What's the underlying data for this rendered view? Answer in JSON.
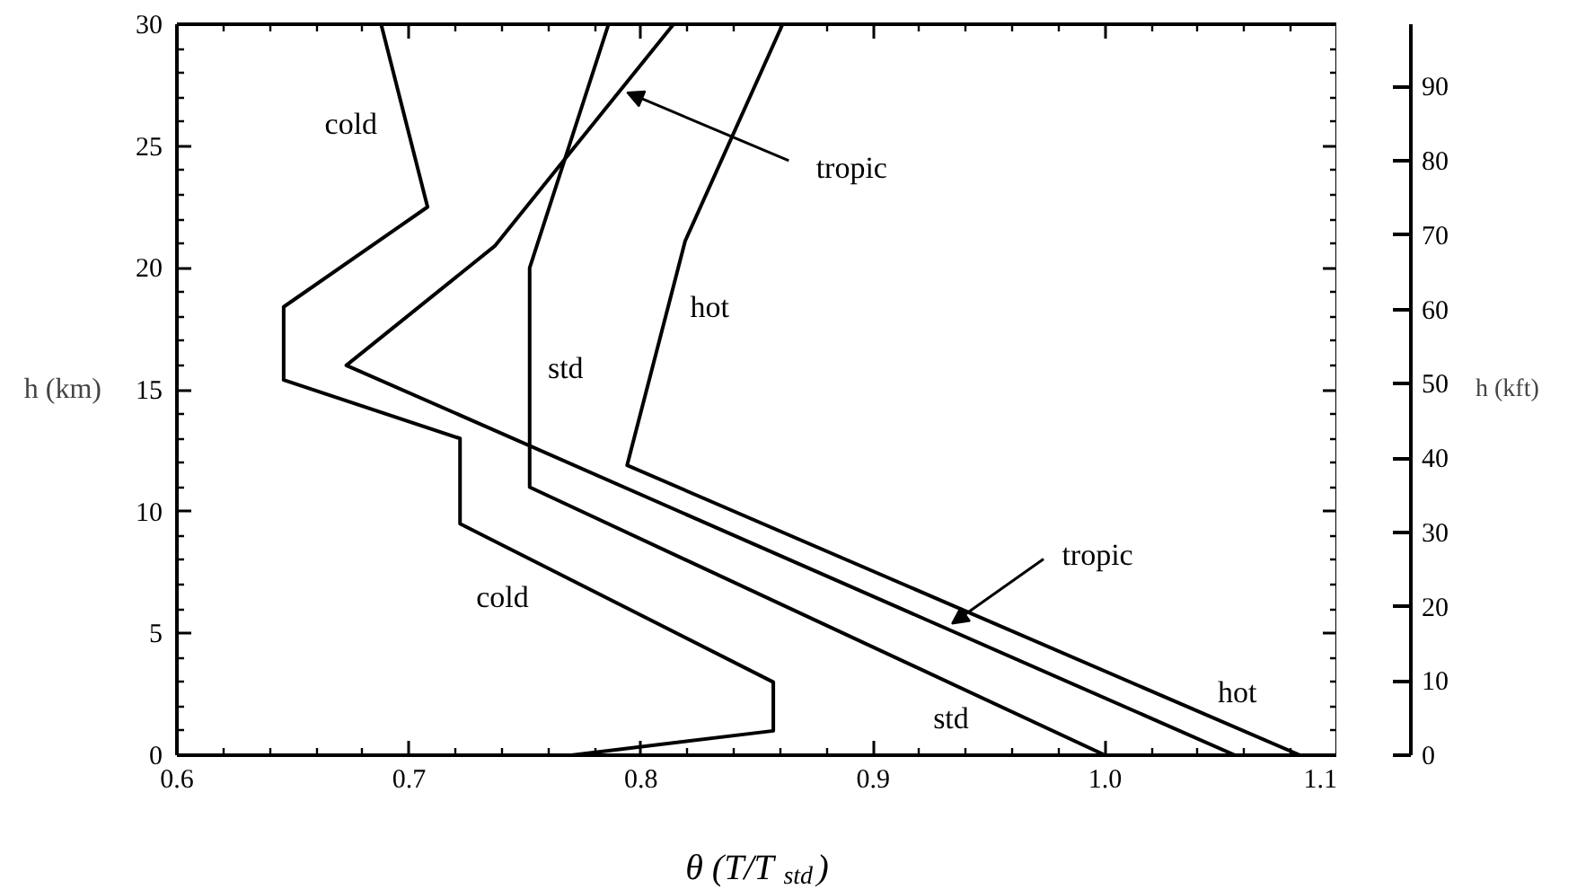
{
  "chart_data": {
    "type": "line",
    "xlabel": "θ (T/T$_{std}$)",
    "ylabel": "h (km)",
    "y2label": "h (kft)",
    "xlim": [
      0.6,
      1.1
    ],
    "ylim": [
      0,
      30
    ],
    "y2lim": [
      0,
      98.4
    ],
    "xticks": [
      0.6,
      {
        "value": 0.62,
        "label": null
      },
      {
        "value": 0.64,
        "label": null
      },
      {
        "value": 0.66,
        "label": null
      },
      {
        "value": 0.68,
        "label": null
      },
      0.7,
      {
        "value": 0.72,
        "label": null
      },
      {
        "value": 0.74,
        "label": null
      },
      {
        "value": 0.76,
        "label": null
      },
      {
        "value": 0.78,
        "label": null
      },
      0.8,
      {
        "value": 0.82,
        "label": null
      },
      {
        "value": 0.84,
        "label": null
      },
      {
        "value": 0.86,
        "label": null
      },
      {
        "value": 0.88,
        "label": null
      },
      0.9,
      {
        "value": 0.92,
        "label": null
      },
      {
        "value": 0.94,
        "label": null
      },
      {
        "value": 0.96,
        "label": null
      },
      {
        "value": 0.98,
        "label": null
      },
      {
        "value": 1.0,
        "label": "1.0"
      },
      {
        "value": 1.02,
        "label": null
      },
      {
        "value": 1.04,
        "label": null
      },
      {
        "value": 1.06,
        "label": null
      },
      {
        "value": 1.08,
        "label": null
      },
      1.1
    ],
    "yticks": [
      0,
      {
        "value": 1,
        "label": null
      },
      {
        "value": 2,
        "label": null
      },
      {
        "value": 3,
        "label": null
      },
      {
        "value": 4,
        "label": null
      },
      5,
      {
        "value": 6,
        "label": null
      },
      {
        "value": 7,
        "label": null
      },
      {
        "value": 8,
        "label": null
      },
      {
        "value": 9,
        "label": null
      },
      10,
      {
        "value": 11,
        "label": null
      },
      {
        "value": 12,
        "label": null
      },
      {
        "value": 13,
        "label": null
      },
      {
        "value": 14,
        "label": null
      },
      15,
      {
        "value": 16,
        "label": null
      },
      {
        "value": 17,
        "label": null
      },
      {
        "value": 18,
        "label": null
      },
      {
        "value": 19,
        "label": null
      },
      20,
      {
        "value": 21,
        "label": null
      },
      {
        "value": 22,
        "label": null
      },
      {
        "value": 23,
        "label": null
      },
      {
        "value": 24,
        "label": null
      },
      25,
      {
        "value": 26,
        "label": null
      },
      {
        "value": 27,
        "label": null
      },
      {
        "value": 28,
        "label": null
      },
      {
        "value": 29,
        "label": null
      },
      30
    ],
    "y2ticks": [
      0,
      10,
      20,
      30,
      40,
      50,
      60,
      70,
      80,
      90
    ],
    "series": [
      {
        "color": "#000000",
        "x": [
          0.77,
          0.857,
          0.857,
          0.722,
          0.722,
          0.646,
          0.646,
          0.708,
          0.688
        ],
        "values": [
          0,
          1.0,
          3.0,
          9.5,
          13.0,
          15.4,
          18.4,
          22.5,
          30
        ]
      },
      {
        "color": "#000000",
        "x": [
          1.0,
          0.752,
          0.752,
          0.786
        ],
        "values": [
          0,
          11,
          20,
          30
        ]
      },
      {
        "color": "#000000",
        "x": [
          1.084,
          0.794,
          0.819,
          0.861
        ],
        "values": [
          0,
          11.9,
          21.1,
          30
        ]
      },
      {
        "color": "#000000",
        "x": [
          1.056,
          0.673,
          0.737,
          0.814
        ],
        "values": [
          0,
          16.0,
          20.9,
          30
        ]
      }
    ],
    "annotations": [
      {
        "text": "cold",
        "x": 0.699,
        "y": 25.9
      },
      {
        "text": "cold",
        "x": 0.748,
        "y": 8.2
      },
      {
        "text": "std",
        "x": 0.752,
        "y": 15.9
      },
      {
        "text": "std",
        "x": 0.939,
        "y": 2.7
      },
      {
        "text": "hot",
        "x": 0.811,
        "y": 18.4
      },
      {
        "text": "hot",
        "x": 1.05,
        "y": 1.4
      },
      {
        "text": "tropic",
        "x": 0.794,
        "y": 27.2
      },
      {
        "text": "tropic",
        "x": 0.934,
        "y": 5.4
      }
    ]
  }
}
